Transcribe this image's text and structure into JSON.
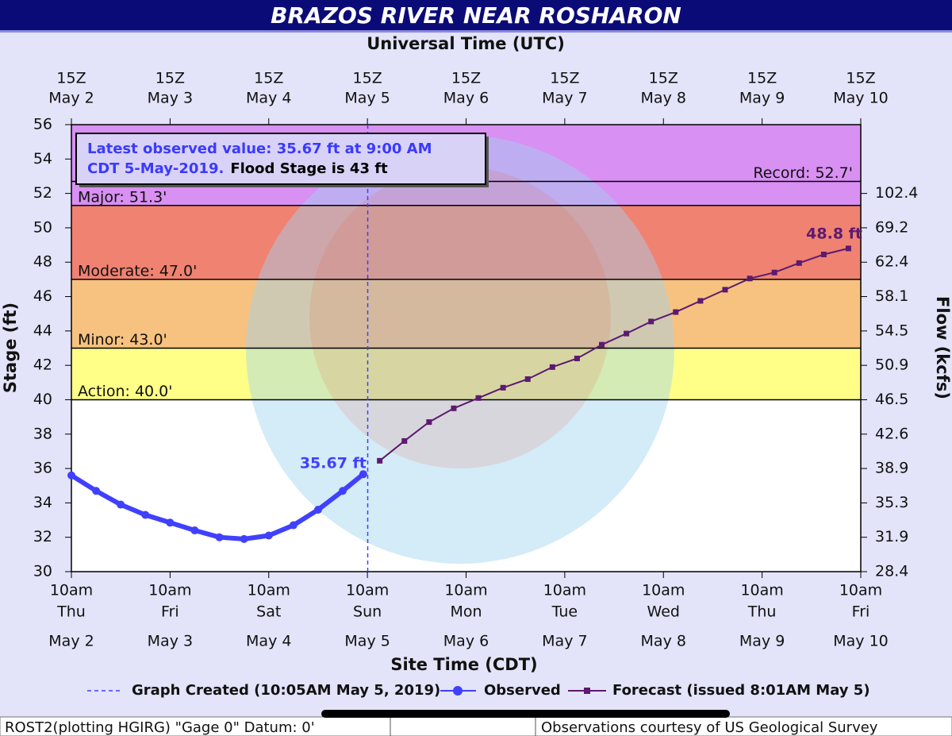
{
  "chart_data": {
    "type": "line",
    "title": "BRAZOS RIVER NEAR ROSHARON",
    "top_axis_label": "Universal Time (UTC)",
    "xlabel": "Site Time (CDT)",
    "ylabel": "Stage (ft)",
    "y2label": "Flow (kcfs)",
    "xlim": [
      2.417,
      10.417
    ],
    "xticks": [
      {
        "value": 2.417,
        "label": "May 2"
      },
      {
        "value": 3.417,
        "label": "May 3"
      },
      {
        "value": 4.417,
        "label": "May 4"
      },
      {
        "value": 5.417,
        "label": "May 5"
      },
      {
        "value": 6.417,
        "label": "May 6"
      },
      {
        "value": 7.417,
        "label": "May 7"
      },
      {
        "value": 8.417,
        "label": "May 8"
      },
      {
        "value": 9.417,
        "label": "May 9"
      },
      {
        "value": 10.417,
        "label": "May 10"
      }
    ],
    "xtick_times": [
      "10am",
      "10am",
      "10am",
      "10am",
      "10am",
      "10am",
      "10am",
      "10am",
      "10am"
    ],
    "xtick_weekdays": [
      "Thu",
      "Fri",
      "Sat",
      "Sun",
      "Mon",
      "Tue",
      "Wed",
      "Thu",
      "Fri"
    ],
    "xtick_utc": [
      "15Z",
      "15Z",
      "15Z",
      "15Z",
      "15Z",
      "15Z",
      "15Z",
      "15Z",
      "15Z"
    ],
    "ylim": [
      30,
      56
    ],
    "yticks": [
      30,
      32,
      34,
      36,
      38,
      40,
      42,
      44,
      46,
      48,
      50,
      52,
      54,
      56
    ],
    "flow_axis": {
      "stage": [
        30,
        32,
        34,
        36,
        38,
        40,
        42,
        44,
        46,
        48,
        50,
        52
      ],
      "flow": [
        28.4,
        31.9,
        35.3,
        38.9,
        42.6,
        46.5,
        50.9,
        54.5,
        58.1,
        62.4,
        69.2,
        102.4
      ]
    },
    "thresholds": [
      {
        "label": "Action: 40.0'",
        "value": 40,
        "top": 43,
        "color": "#ffff88"
      },
      {
        "label": "Minor: 43.0'",
        "value": 43,
        "top": 47,
        "color": "#f7c27f"
      },
      {
        "label": "Moderate: 47.0'",
        "value": 47,
        "top": 51.3,
        "color": "#f08272"
      },
      {
        "label": "Major: 51.3'",
        "value": 51.3,
        "top": 56,
        "color": "#d890f2"
      }
    ],
    "record": {
      "label": "Record: 52.7'",
      "value": 52.7
    },
    "graph_created": {
      "label": "Graph Created (10:05AM May 5, 2019)",
      "x": 5.42
    },
    "info_lines": [
      "Latest observed value: 35.67 ft at 9:00 AM",
      "CDT 5-May-2019."
    ],
    "flood_stage_note": "Flood Stage is 43 ft",
    "series": [
      {
        "name": "Observed",
        "color": "#4040ff",
        "x": [
          2.417,
          2.667,
          2.917,
          3.167,
          3.417,
          3.667,
          3.917,
          4.167,
          4.417,
          4.667,
          4.917,
          5.167,
          5.375
        ],
        "values": [
          35.6,
          34.7,
          33.9,
          33.3,
          32.85,
          32.4,
          32.0,
          31.9,
          32.1,
          32.7,
          33.6,
          34.7,
          35.67
        ],
        "value_labels": [
          null,
          null,
          null,
          null,
          null,
          null,
          null,
          null,
          null,
          null,
          null,
          null,
          "35.67 ft"
        ]
      },
      {
        "name": "Forecast (issued 8:01AM May 5)",
        "color": "#5c1a70",
        "x": [
          5.542,
          5.792,
          6.042,
          6.292,
          6.542,
          6.792,
          7.042,
          7.292,
          7.542,
          7.792,
          8.042,
          8.292,
          8.542,
          8.792,
          9.042,
          9.292,
          9.542,
          9.792,
          10.042,
          10.292
        ],
        "values": [
          36.45,
          37.6,
          38.7,
          39.5,
          40.1,
          40.7,
          41.2,
          41.9,
          42.4,
          43.2,
          43.85,
          44.55,
          45.1,
          45.75,
          46.4,
          47.05,
          47.4,
          47.95,
          48.45,
          48.8
        ],
        "value_labels": [
          null,
          null,
          null,
          null,
          null,
          null,
          null,
          null,
          null,
          null,
          null,
          null,
          null,
          null,
          null,
          null,
          null,
          null,
          null,
          "48.8 ft"
        ]
      }
    ],
    "footer": {
      "left": "ROST2(plotting HGIRG) \"Gage 0\" Datum: 0'",
      "right": "Observations courtesy of US Geological Survey"
    }
  }
}
